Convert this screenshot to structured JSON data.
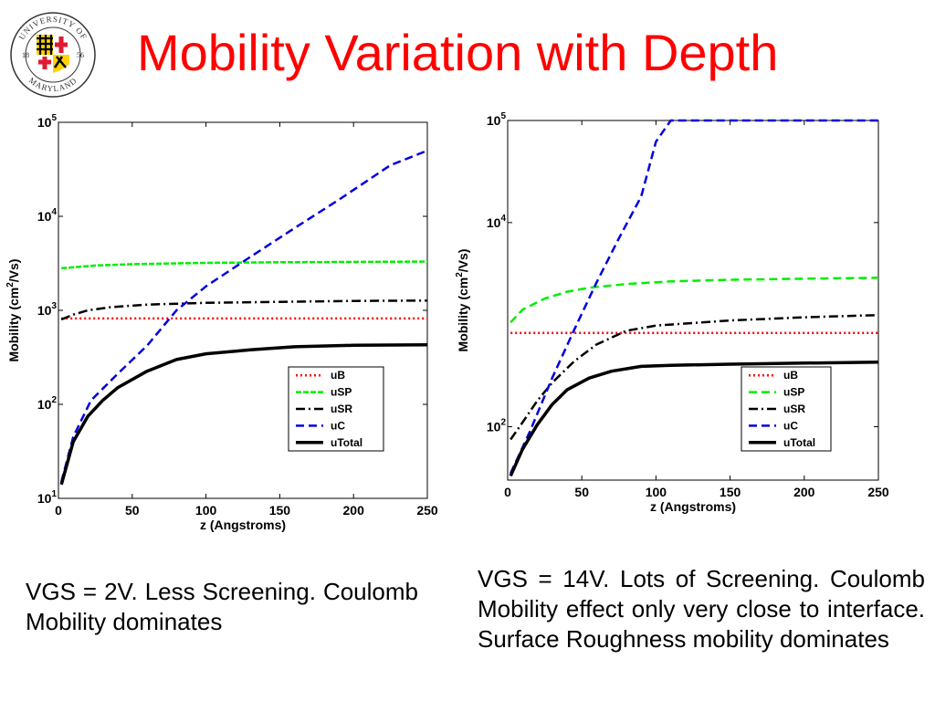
{
  "title": "Mobility Variation with Depth",
  "logo": {
    "text_top": "UNIVERSITY OF",
    "text_bottom": "MARYLAND",
    "year_left": "18",
    "year_right": "56"
  },
  "captions": {
    "left": "VGS = 2V. Less Screening. Coulomb Mobility dominates",
    "right": "VGS = 14V. Lots of Screening. Coulomb Mobility effect only very close to interface. Surface Roughness mobility dominates"
  },
  "chart_data": [
    {
      "type": "line",
      "xlabel": "z (Angstroms)",
      "ylabel": "Mobility (cm2/Vs)",
      "y_scale": "log",
      "xlim": [
        0,
        250
      ],
      "ylim": [
        10,
        100000
      ],
      "xticks": [
        0,
        50,
        100,
        150,
        200,
        250
      ],
      "yticks": [
        10,
        100,
        1000,
        10000,
        100000
      ],
      "ytick_exponents": [
        "1",
        "2",
        "3",
        "4",
        "5"
      ],
      "legend_position": "lower-right",
      "series": [
        {
          "name": "uB",
          "color": "#ff0000",
          "dash": "dotted",
          "x": [
            2,
            50,
            100,
            150,
            200,
            250
          ],
          "y": [
            820,
            820,
            820,
            820,
            820,
            820
          ]
        },
        {
          "name": "uSP",
          "color": "#00ee00",
          "dash": "dashdot-markers",
          "x": [
            2,
            25,
            50,
            100,
            150,
            250
          ],
          "y": [
            2800,
            3000,
            3100,
            3200,
            3250,
            3300
          ]
        },
        {
          "name": "uSR",
          "color": "#000000",
          "dash": "dashdot",
          "x": [
            2,
            10,
            20,
            35,
            60,
            100,
            150,
            200,
            250
          ],
          "y": [
            800,
            900,
            1000,
            1080,
            1150,
            1200,
            1230,
            1260,
            1270
          ]
        },
        {
          "name": "uC",
          "color": "#0000dd",
          "dash": "dashed",
          "x": [
            2,
            10,
            22,
            40,
            60,
            80,
            100,
            130,
            160,
            190,
            225,
            250
          ],
          "y": [
            15,
            45,
            110,
            210,
            420,
            1000,
            1800,
            3700,
            7500,
            15000,
            35000,
            50000
          ]
        },
        {
          "name": "uTotal",
          "color": "#000000",
          "dash": "solid",
          "x": [
            2,
            10,
            20,
            30,
            40,
            60,
            80,
            100,
            130,
            160,
            200,
            250
          ],
          "y": [
            14,
            40,
            75,
            110,
            150,
            225,
            300,
            345,
            380,
            410,
            425,
            430
          ]
        }
      ]
    },
    {
      "type": "line",
      "xlabel": "z (Angstroms)",
      "ylabel": "Mobility (cm2/Vs)",
      "y_scale": "log",
      "xlim": [
        0,
        250
      ],
      "ylim": [
        30,
        100000
      ],
      "xticks": [
        0,
        50,
        100,
        150,
        200,
        250
      ],
      "yticks": [
        100,
        10000,
        100000
      ],
      "ytick_exponents": [
        "2",
        "4",
        "5"
      ],
      "legend_position": "lower-right",
      "series": [
        {
          "name": "uB",
          "color": "#ff0000",
          "dash": "dotted",
          "x": [
            2,
            50,
            100,
            150,
            200,
            250
          ],
          "y": [
            830,
            830,
            830,
            830,
            830,
            830
          ]
        },
        {
          "name": "uSP",
          "color": "#00ee00",
          "dash": "dashed",
          "x": [
            2,
            10,
            25,
            40,
            55,
            80,
            110,
            150,
            200,
            250
          ],
          "y": [
            1050,
            1400,
            1800,
            2100,
            2300,
            2500,
            2650,
            2750,
            2820,
            2880
          ]
        },
        {
          "name": "uSR",
          "color": "#000000",
          "dash": "dashdot",
          "x": [
            2,
            10,
            20,
            30,
            45,
            60,
            80,
            100,
            150,
            200,
            250
          ],
          "y": [
            75,
            110,
            180,
            270,
            440,
            640,
            870,
            980,
            1100,
            1180,
            1240
          ]
        },
        {
          "name": "uC",
          "color": "#0000dd",
          "dash": "dashed",
          "x": [
            2,
            15,
            30,
            45,
            60,
            75,
            90,
            100,
            110,
            250
          ],
          "y": [
            35,
            90,
            300,
            900,
            2600,
            7000,
            18000,
            62000,
            100000,
            100000
          ]
        },
        {
          "name": "uTotal",
          "color": "#000000",
          "dash": "solid",
          "x": [
            2,
            10,
            20,
            30,
            40,
            55,
            70,
            90,
            110,
            150,
            200,
            250
          ],
          "y": [
            33,
            60,
            105,
            165,
            230,
            300,
            350,
            390,
            400,
            410,
            420,
            430
          ]
        }
      ]
    }
  ]
}
